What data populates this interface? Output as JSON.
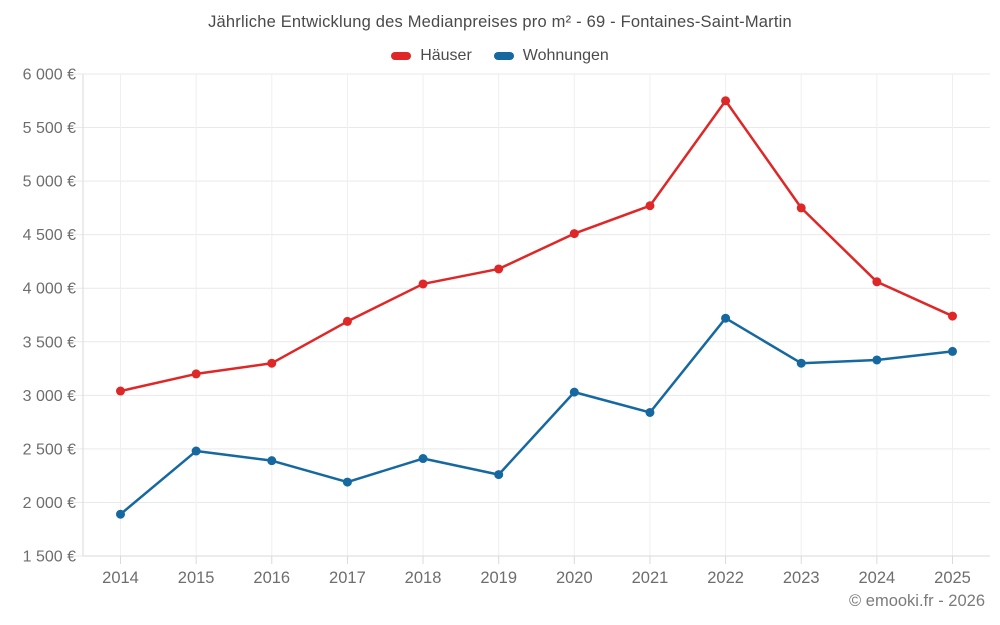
{
  "chart_data": {
    "type": "line",
    "title": "Jährliche Entwicklung des Medianpreises pro m² - 69 - Fontaines-Saint-Martin",
    "categories": [
      "2014",
      "2015",
      "2016",
      "2017",
      "2018",
      "2019",
      "2020",
      "2021",
      "2022",
      "2023",
      "2024",
      "2025"
    ],
    "series": [
      {
        "name": "Häuser",
        "color": "#e02727",
        "values": [
          3040,
          3200,
          3300,
          3690,
          4040,
          4180,
          4510,
          4770,
          5750,
          4750,
          4060,
          3740
        ]
      },
      {
        "name": "Wohnungen",
        "color": "#1669a0",
        "values": [
          1890,
          2480,
          2390,
          2190,
          2410,
          2260,
          3030,
          2840,
          3720,
          3300,
          3330,
          3410
        ]
      }
    ],
    "xlabel": "",
    "ylabel": "",
    "ylim": [
      1500,
      6000
    ],
    "ytick_values": [
      1500,
      2000,
      2500,
      3000,
      3500,
      4000,
      4500,
      5000,
      5500,
      6000
    ],
    "ytick_labels": [
      "1 500 €",
      "2 000 €",
      "2 500 €",
      "3 000 €",
      "3 500 €",
      "4 000 €",
      "4 500 €",
      "5 000 €",
      "5 500 €",
      "6 000 €"
    ],
    "grid": true,
    "legend_position": "top"
  },
  "footer": {
    "credit": "© emooki.fr - 2026"
  },
  "colors": {
    "grid_horizontal": "#e9e9e9",
    "grid_vertical": "#efefef",
    "axis_line": "#dadada",
    "axis_text": "#6e6e6e"
  }
}
